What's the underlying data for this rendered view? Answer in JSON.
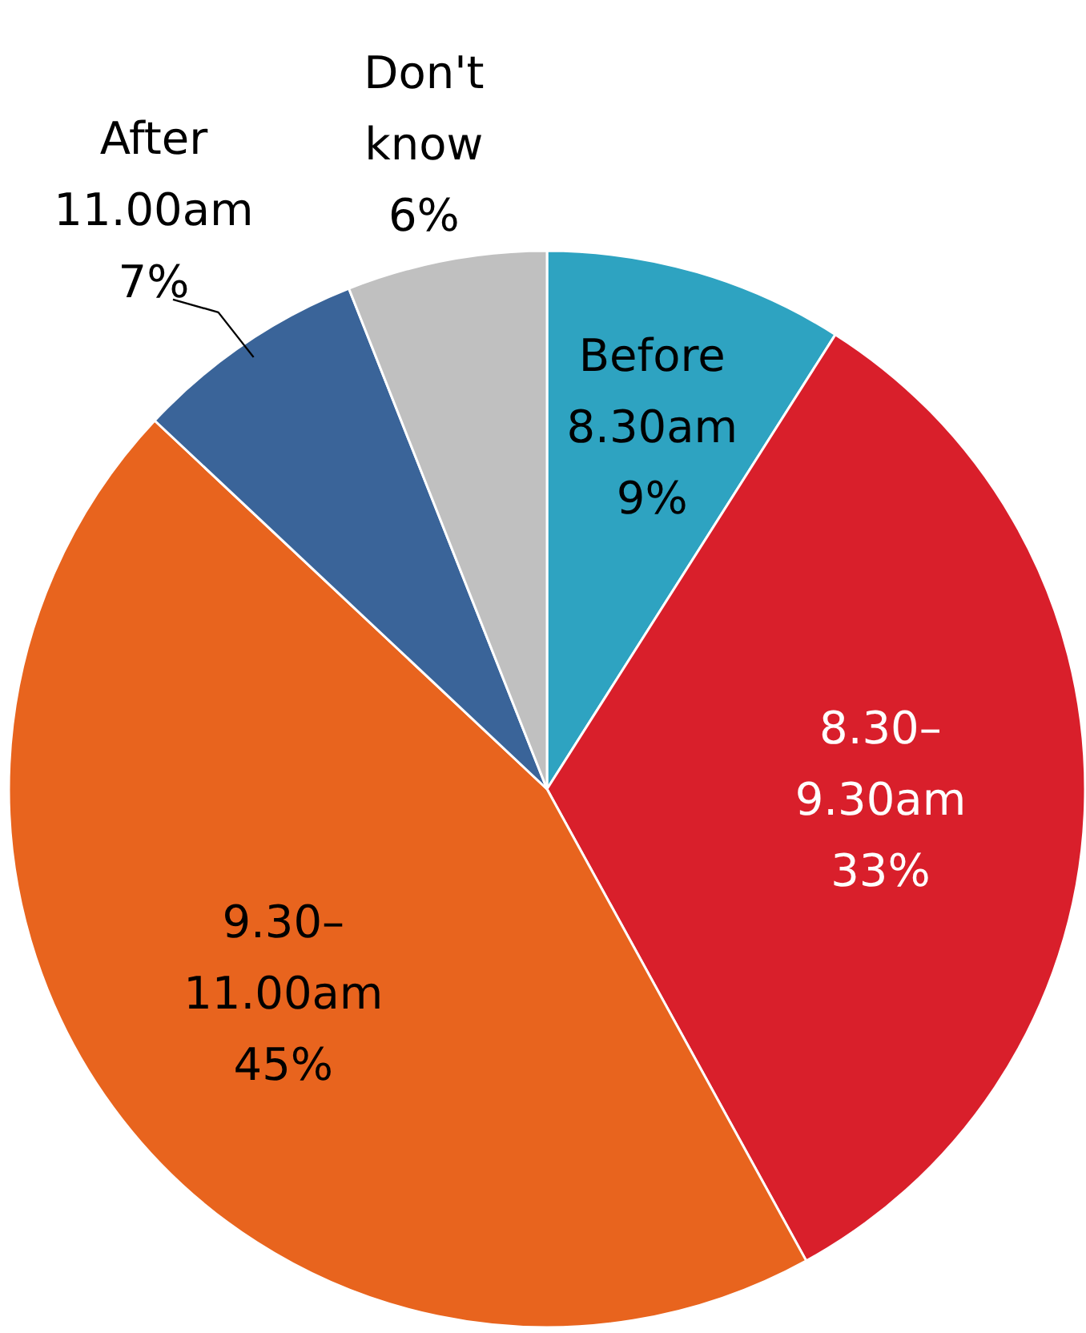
{
  "chart_data": {
    "type": "pie",
    "categories": [
      "Before\n8.30am",
      "8.30–\n9.30am",
      "9.30–\n11.00am",
      "After\n11.00am",
      "Don't\nknow"
    ],
    "values": [
      9,
      33,
      45,
      7,
      6
    ],
    "colors": [
      "#2ea3c1",
      "#d91f2b",
      "#e8641e",
      "#3a6499",
      "#c0c0c0"
    ],
    "value_labels": [
      "9%",
      "33%",
      "45%",
      "7%",
      "6%"
    ]
  }
}
